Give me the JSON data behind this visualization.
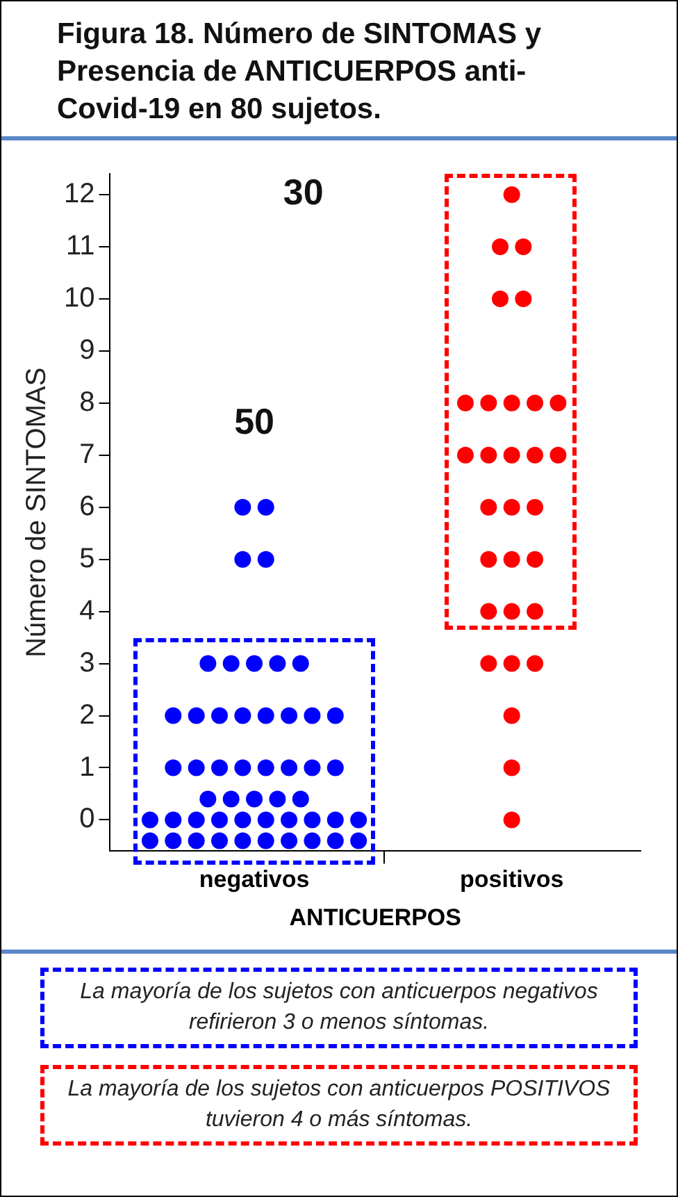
{
  "chart_data": {
    "type": "scatter",
    "title": "Figura 18. Número de SINTOMAS y Presencia de ANTICUERPOS anti-Covid-19 en 80 sujetos.",
    "xlabel": "ANTICUERPOS",
    "ylabel": "Número de SINTOMAS",
    "categories": [
      "negativos",
      "positivos"
    ],
    "ylim": [
      -0.6,
      12.4
    ],
    "yticks": [
      0,
      1,
      2,
      3,
      4,
      5,
      6,
      7,
      8,
      9,
      10,
      11,
      12
    ],
    "grid": false,
    "legend": false,
    "marker": "circle",
    "series": [
      {
        "color": "#0000ff",
        "x": [
          "negativos",
          "negativos",
          "negativos",
          "negativos",
          "negativos",
          "negativos",
          "negativos",
          "negativos",
          "negativos",
          "negativos",
          "negativos",
          "negativos",
          "negativos",
          "negativos",
          "negativos",
          "negativos",
          "negativos",
          "negativos",
          "negativos",
          "negativos",
          "negativos",
          "negativos",
          "negativos",
          "negativos",
          "negativos",
          "negativos",
          "negativos",
          "negativos",
          "negativos",
          "negativos",
          "negativos",
          "negativos",
          "negativos",
          "negativos",
          "negativos",
          "negativos",
          "negativos",
          "negativos",
          "negativos",
          "negativos",
          "negativos",
          "negativos",
          "negativos",
          "negativos",
          "negativos",
          "negativos",
          "negativos",
          "negativos",
          "negativos",
          "negativos"
        ],
        "values": [
          6,
          6,
          5,
          5,
          3,
          3,
          3,
          3,
          3,
          2,
          2,
          2,
          2,
          2,
          2,
          2,
          2,
          1,
          1,
          1,
          1,
          1,
          1,
          1,
          1,
          0.4,
          0.4,
          0.4,
          0.4,
          0.4,
          0,
          0,
          0,
          0,
          0,
          0,
          0,
          0,
          0,
          0,
          -0.4,
          -0.4,
          -0.4,
          -0.4,
          -0.4,
          -0.4,
          -0.4,
          -0.4,
          -0.4,
          -0.4
        ]
      },
      {
        "color": "#ff0000",
        "x": [
          "positivos",
          "positivos",
          "positivos",
          "positivos",
          "positivos",
          "positivos",
          "positivos",
          "positivos",
          "positivos",
          "positivos",
          "positivos",
          "positivos",
          "positivos",
          "positivos",
          "positivos",
          "positivos",
          "positivos",
          "positivos",
          "positivos",
          "positivos",
          "positivos",
          "positivos",
          "positivos",
          "positivos",
          "positivos",
          "positivos",
          "positivos",
          "positivos",
          "positivos",
          "positivos"
        ],
        "values": [
          12,
          11,
          11,
          10,
          10,
          8,
          8,
          8,
          8,
          8,
          7,
          7,
          7,
          7,
          7,
          6,
          6,
          6,
          5,
          5,
          5,
          4,
          4,
          4,
          3,
          3,
          3,
          2,
          1,
          0
        ]
      }
    ],
    "annotations": [
      "50",
      "30",
      "La mayoría de los sujetos con anticuerpos negativos refirieron 3 o menos síntomas.",
      "La mayoría de los sujetos con anticuerpos POSITIVOS tuvieron 4 o más síntomas."
    ]
  }
}
